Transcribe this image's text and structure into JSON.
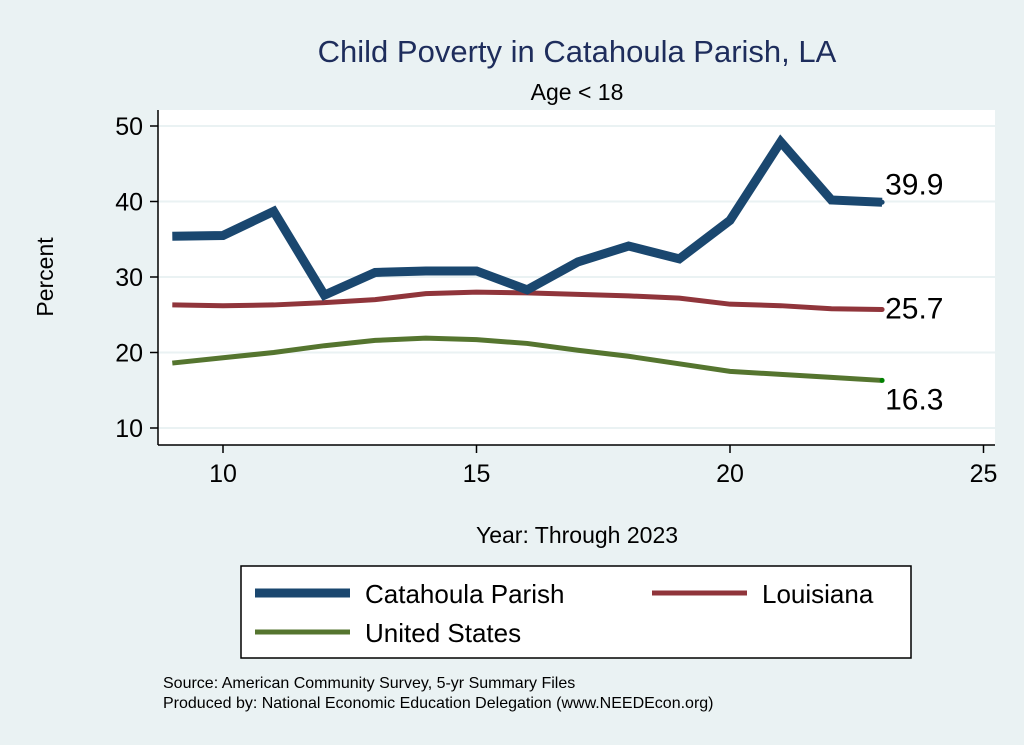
{
  "chart_data": {
    "type": "line",
    "title": "Child Poverty in Catahoula Parish, LA",
    "subtitle": "Age < 18",
    "xlabel": "Year: Through 2023",
    "ylabel": "Percent",
    "xlim": [
      9,
      25.2
    ],
    "ylim": [
      8.5,
      52
    ],
    "xticks": [
      10,
      15,
      20,
      25
    ],
    "yticks": [
      10,
      20,
      30,
      40,
      50
    ],
    "grid": true,
    "legend_position": "bottom",
    "x": [
      9,
      10,
      11,
      12,
      13,
      14,
      15,
      16,
      17,
      18,
      19,
      20,
      21,
      22,
      23
    ],
    "series": [
      {
        "name": "Catahoula Parish",
        "color": "#1a476f",
        "width": 9,
        "values": [
          35.4,
          35.5,
          38.7,
          27.6,
          30.6,
          30.8,
          30.8,
          28.3,
          32.0,
          34.1,
          32.4,
          37.5,
          47.9,
          40.2,
          39.9
        ],
        "end_label": "39.9"
      },
      {
        "name": "Louisiana",
        "color": "#90353b",
        "width": 5,
        "values": [
          26.3,
          26.2,
          26.3,
          26.6,
          27.0,
          27.8,
          28.0,
          27.9,
          27.7,
          27.5,
          27.2,
          26.4,
          26.2,
          25.8,
          25.7
        ],
        "end_label": "25.7"
      },
      {
        "name": "United States",
        "color": "#55752f",
        "width": 5,
        "values": [
          18.6,
          19.3,
          20.0,
          20.9,
          21.6,
          21.9,
          21.7,
          21.2,
          20.3,
          19.5,
          18.5,
          17.5,
          17.1,
          16.7,
          16.3
        ],
        "end_label": "16.3"
      }
    ],
    "notes": [
      "Source: American Community Survey, 5-yr Summary Files",
      "Produced by: National Economic Education Delegation (www.NEEDEcon.org)"
    ]
  }
}
